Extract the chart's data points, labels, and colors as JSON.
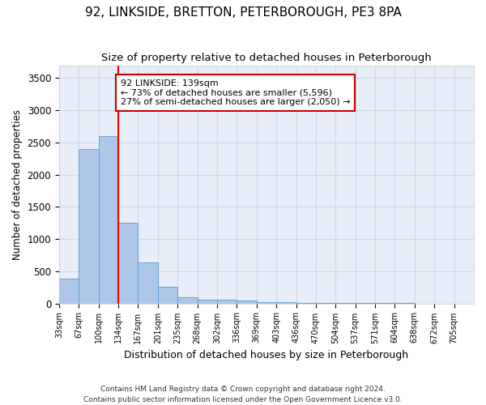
{
  "title": "92, LINKSIDE, BRETTON, PETERBOROUGH, PE3 8PA",
  "subtitle": "Size of property relative to detached houses in Peterborough",
  "xlabel": "Distribution of detached houses by size in Peterborough",
  "ylabel": "Number of detached properties",
  "footer_line1": "Contains HM Land Registry data © Crown copyright and database right 2024.",
  "footer_line2": "Contains public sector information licensed under the Open Government Licence v3.0.",
  "bin_labels": [
    "33sqm",
    "67sqm",
    "100sqm",
    "134sqm",
    "167sqm",
    "201sqm",
    "235sqm",
    "268sqm",
    "302sqm",
    "336sqm",
    "369sqm",
    "403sqm",
    "436sqm",
    "470sqm",
    "504sqm",
    "537sqm",
    "571sqm",
    "604sqm",
    "638sqm",
    "672sqm",
    "705sqm"
  ],
  "bar_values": [
    390,
    2400,
    2600,
    1250,
    640,
    260,
    100,
    60,
    60,
    50,
    25,
    15,
    10,
    5,
    3,
    2,
    1,
    1,
    0,
    0,
    0
  ],
  "bar_color": "#aec6e8",
  "bar_edge_color": "#5b9bd5",
  "red_line_bin": 3,
  "annotation_text": "92 LINKSIDE: 139sqm\n← 73% of detached houses are smaller (5,596)\n27% of semi-detached houses are larger (2,050) →",
  "annotation_box_color": "#ffffff",
  "annotation_box_edge": "#cc0000",
  "ylim": [
    0,
    3700
  ],
  "yticks": [
    0,
    500,
    1000,
    1500,
    2000,
    2500,
    3000,
    3500
  ],
  "grid_color": "#d0d8e8",
  "bg_color": "#e8eef8",
  "title_fontsize": 11,
  "subtitle_fontsize": 9.5,
  "ylabel_text": "Number of detached properties"
}
